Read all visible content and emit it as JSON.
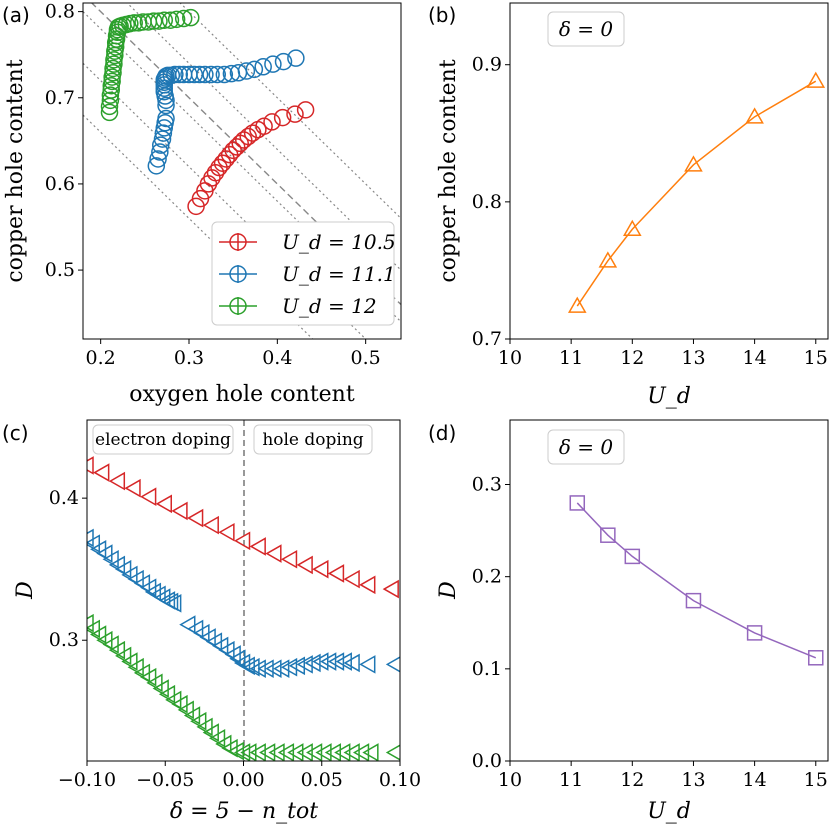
{
  "colors": {
    "red": "#d62728",
    "blue": "#1f77b4",
    "green": "#2ca02c",
    "orange": "#ff7f0e",
    "purple": "#9467bd"
  },
  "chart_data": [
    {
      "panel": "(a)",
      "type": "scatter",
      "xlabel": "oxygen hole content",
      "ylabel": "copper hole content",
      "xlim": [
        0.18,
        0.54
      ],
      "ylim": [
        0.42,
        0.81
      ],
      "xticks": [
        0.2,
        0.3,
        0.4,
        0.5
      ],
      "yticks": [
        0.5,
        0.6,
        0.7,
        0.8
      ],
      "xtick_labels": [
        "0.2",
        "0.3",
        "0.4",
        "0.5"
      ],
      "ytick_labels": [
        "0.5",
        "0.6",
        "0.7",
        "0.8"
      ],
      "marker": "circle",
      "legend": {
        "placement": "lower-right",
        "entries": [
          "U_d = 10.5",
          "U_d = 11.1",
          "U_d = 12"
        ]
      },
      "guide_lines": {
        "style": "dotted",
        "note": "constant total hole content x + y",
        "sums": [
          0.86,
          0.92,
          0.98,
          1.04,
          1.1
        ],
        "dashed_sum": 1.0
      },
      "series": [
        {
          "name": "U_d = 10.5",
          "color_key": "red",
          "x": [
            0.308,
            0.313,
            0.318,
            0.322,
            0.326,
            0.33,
            0.334,
            0.338,
            0.342,
            0.346,
            0.35,
            0.354,
            0.358,
            0.362,
            0.367,
            0.372,
            0.378,
            0.385,
            0.394,
            0.406,
            0.42,
            0.432
          ],
          "y": [
            0.574,
            0.583,
            0.592,
            0.6,
            0.607,
            0.613,
            0.619,
            0.624,
            0.629,
            0.634,
            0.639,
            0.643,
            0.647,
            0.651,
            0.655,
            0.659,
            0.663,
            0.667,
            0.672,
            0.677,
            0.681,
            0.686
          ]
        },
        {
          "name": "U_d = 11.1",
          "color_key": "blue",
          "x": [
            0.263,
            0.265,
            0.267,
            0.268,
            0.27,
            0.271,
            0.272,
            0.273,
            0.274,
            0.274,
            0.274,
            0.273,
            0.272,
            0.272,
            0.272,
            0.272,
            0.272,
            0.273,
            0.274,
            0.276,
            0.28,
            0.284,
            0.289,
            0.294,
            0.3,
            0.306,
            0.312,
            0.318,
            0.325,
            0.332,
            0.34,
            0.348,
            0.356,
            0.365,
            0.374,
            0.384,
            0.395,
            0.407,
            0.421
          ],
          "y": [
            0.621,
            0.629,
            0.637,
            0.645,
            0.652,
            0.659,
            0.665,
            0.671,
            0.676,
            0.691,
            0.697,
            0.702,
            0.707,
            0.711,
            0.715,
            0.718,
            0.721,
            0.723,
            0.725,
            0.726,
            0.726,
            0.727,
            0.727,
            0.727,
            0.727,
            0.727,
            0.727,
            0.727,
            0.727,
            0.727,
            0.727,
            0.728,
            0.729,
            0.731,
            0.733,
            0.736,
            0.739,
            0.742,
            0.746
          ]
        },
        {
          "name": "U_d = 12",
          "color_key": "green",
          "x": [
            0.21,
            0.21,
            0.211,
            0.211,
            0.212,
            0.212,
            0.213,
            0.213,
            0.214,
            0.214,
            0.215,
            0.215,
            0.216,
            0.216,
            0.217,
            0.217,
            0.218,
            0.218,
            0.219,
            0.219,
            0.22,
            0.222,
            0.225,
            0.229,
            0.233,
            0.238,
            0.243,
            0.248,
            0.254,
            0.26,
            0.266,
            0.272,
            0.279,
            0.286,
            0.294,
            0.302
          ],
          "y": [
            0.683,
            0.69,
            0.697,
            0.703,
            0.709,
            0.714,
            0.719,
            0.724,
            0.729,
            0.734,
            0.739,
            0.744,
            0.749,
            0.754,
            0.759,
            0.764,
            0.768,
            0.772,
            0.776,
            0.779,
            0.782,
            0.783,
            0.784,
            0.785,
            0.786,
            0.787,
            0.787,
            0.788,
            0.788,
            0.789,
            0.789,
            0.79,
            0.79,
            0.791,
            0.792,
            0.793
          ]
        }
      ]
    },
    {
      "panel": "(b)",
      "type": "line",
      "xlabel": "U_d",
      "ylabel": "copper hole content",
      "annotation": "δ = 0",
      "xlim": [
        10,
        15.2
      ],
      "ylim": [
        0.7,
        0.945
      ],
      "xticks": [
        10,
        11,
        12,
        13,
        14,
        15
      ],
      "yticks": [
        0.7,
        0.8,
        0.9
      ],
      "xtick_labels": [
        "10",
        "11",
        "12",
        "13",
        "14",
        "15"
      ],
      "ytick_labels": [
        "0.7",
        "0.8",
        "0.9"
      ],
      "marker": "triangle-up",
      "color_key": "orange",
      "x": [
        11.1,
        11.6,
        12.0,
        13.0,
        14.0,
        15.0
      ],
      "y": [
        0.724,
        0.757,
        0.78,
        0.827,
        0.862,
        0.888
      ]
    },
    {
      "panel": "(c)",
      "type": "scatter",
      "xlabel": "δ = 5 − n_tot",
      "ylabel": "D",
      "xlim": [
        -0.1,
        0.1
      ],
      "ylim": [
        0.215,
        0.455
      ],
      "xticks": [
        -0.1,
        -0.05,
        0.0,
        0.05,
        0.1
      ],
      "yticks": [
        0.3,
        0.4
      ],
      "xtick_labels": [
        "−0.10",
        "−0.05",
        "0.00",
        "0.05",
        "0.10"
      ],
      "ytick_labels": [
        "0.3",
        "0.4"
      ],
      "marker": "triangle-left",
      "region_labels": [
        "electron doping",
        "hole doping"
      ],
      "vline_x": 0.0,
      "series": [
        {
          "name": "U_d = 10.5",
          "color_key": "red",
          "x": [
            -0.1,
            -0.09,
            -0.08,
            -0.07,
            -0.06,
            -0.05,
            -0.04,
            -0.03,
            -0.02,
            -0.01,
            0.0,
            0.01,
            0.02,
            0.03,
            0.04,
            0.05,
            0.06,
            0.07,
            0.08,
            0.095
          ],
          "y": [
            0.423,
            0.418,
            0.412,
            0.407,
            0.401,
            0.396,
            0.391,
            0.386,
            0.381,
            0.376,
            0.37,
            0.366,
            0.361,
            0.357,
            0.353,
            0.35,
            0.347,
            0.343,
            0.339,
            0.336
          ]
        },
        {
          "name": "U_d = 11.1",
          "color_key": "blue",
          "x": [
            -0.1,
            -0.096,
            -0.092,
            -0.088,
            -0.084,
            -0.08,
            -0.076,
            -0.072,
            -0.068,
            -0.064,
            -0.06,
            -0.057,
            -0.054,
            -0.051,
            -0.048,
            -0.046,
            -0.044,
            -0.035,
            -0.03,
            -0.026,
            -0.022,
            -0.018,
            -0.014,
            -0.01,
            -0.006,
            -0.003,
            0.0,
            0.003,
            0.006,
            0.01,
            0.015,
            0.02,
            0.025,
            0.03,
            0.035,
            0.04,
            0.045,
            0.05,
            0.055,
            0.06,
            0.065,
            0.07,
            0.08,
            0.097
          ],
          "y": [
            0.372,
            0.368,
            0.364,
            0.361,
            0.357,
            0.353,
            0.35,
            0.346,
            0.343,
            0.34,
            0.337,
            0.334,
            0.332,
            0.33,
            0.328,
            0.327,
            0.326,
            0.311,
            0.308,
            0.305,
            0.302,
            0.299,
            0.296,
            0.293,
            0.29,
            0.287,
            0.284,
            0.282,
            0.281,
            0.28,
            0.28,
            0.28,
            0.28,
            0.281,
            0.282,
            0.283,
            0.284,
            0.285,
            0.285,
            0.285,
            0.285,
            0.284,
            0.283,
            0.283
          ]
        },
        {
          "name": "U_d = 12",
          "color_key": "green",
          "x": [
            -0.1,
            -0.096,
            -0.092,
            -0.088,
            -0.084,
            -0.08,
            -0.076,
            -0.072,
            -0.068,
            -0.064,
            -0.06,
            -0.056,
            -0.052,
            -0.048,
            -0.044,
            -0.04,
            -0.036,
            -0.032,
            -0.028,
            -0.024,
            -0.02,
            -0.016,
            -0.012,
            -0.008,
            -0.004,
            0.0,
            0.004,
            0.01,
            0.016,
            0.022,
            0.028,
            0.034,
            0.04,
            0.046,
            0.052,
            0.058,
            0.064,
            0.07,
            0.076,
            0.082,
            0.097
          ],
          "y": [
            0.312,
            0.308,
            0.304,
            0.3,
            0.297,
            0.293,
            0.289,
            0.285,
            0.281,
            0.277,
            0.274,
            0.27,
            0.266,
            0.262,
            0.258,
            0.255,
            0.251,
            0.247,
            0.243,
            0.239,
            0.235,
            0.231,
            0.227,
            0.224,
            0.222,
            0.221,
            0.221,
            0.221,
            0.221,
            0.221,
            0.221,
            0.221,
            0.221,
            0.221,
            0.221,
            0.221,
            0.221,
            0.221,
            0.221,
            0.221,
            0.221
          ]
        }
      ]
    },
    {
      "panel": "(d)",
      "type": "line",
      "xlabel": "U_d",
      "ylabel": "D",
      "annotation": "δ = 0",
      "xlim": [
        10,
        15.2
      ],
      "ylim": [
        0.0,
        0.37
      ],
      "xticks": [
        10,
        11,
        12,
        13,
        14,
        15
      ],
      "yticks": [
        0.0,
        0.1,
        0.2,
        0.3
      ],
      "xtick_labels": [
        "10",
        "11",
        "12",
        "13",
        "14",
        "15"
      ],
      "ytick_labels": [
        "0.0",
        "0.1",
        "0.2",
        "0.3"
      ],
      "marker": "square",
      "color_key": "purple",
      "x": [
        11.1,
        11.6,
        12.0,
        13.0,
        14.0,
        15.0
      ],
      "y": [
        0.28,
        0.245,
        0.222,
        0.174,
        0.139,
        0.112
      ]
    }
  ]
}
